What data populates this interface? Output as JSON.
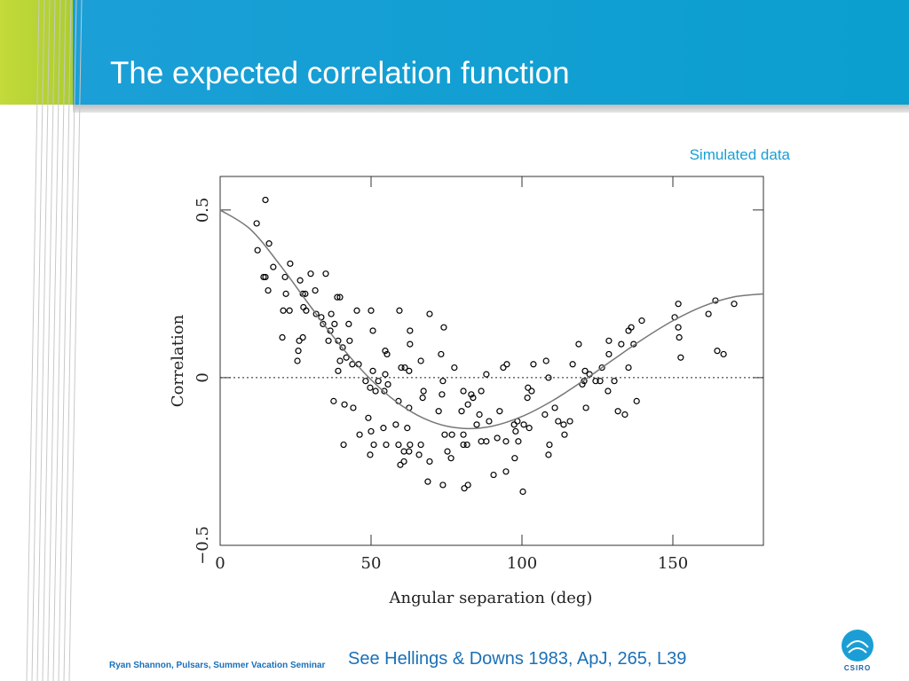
{
  "slide": {
    "title": "The expected correlation function",
    "footer": "Ryan Shannon, Pulsars, Summer Vacation Seminar",
    "reference": "See Hellings & Downs 1983, ApJ, 265, L39",
    "logo_text": "CSIRO"
  },
  "chart_data": {
    "type": "scatter",
    "annotation": "Simulated data",
    "xlabel": "Angular separation (deg)",
    "ylabel": "Correlation",
    "xlim": [
      0,
      180
    ],
    "ylim": [
      -0.5,
      0.6
    ],
    "xticks": [
      0,
      50,
      100,
      150
    ],
    "yticks": [
      {
        "value": -0.5,
        "label": "−0.5"
      },
      0,
      0.5
    ],
    "zero_line": 0,
    "series": [
      {
        "type": "scatter",
        "color": "#000000",
        "x": [
          15.0,
          12.1,
          16.2,
          12.4,
          15.0,
          14.4,
          17.6,
          21.5,
          15.9,
          23.2,
          21.8,
          26.5,
          30.0,
          28.2,
          27.4,
          31.5,
          35.0,
          31.8,
          33.5,
          36.8,
          38.8,
          39.7,
          20.9,
          23.0,
          27.6,
          28.5,
          34.1,
          36.5,
          35.9,
          39.1,
          42.9,
          20.6,
          27.4,
          26.2,
          25.9,
          25.6,
          40.6,
          41.8,
          39.7,
          37.9,
          45.3,
          50.0,
          42.6,
          50.6,
          45.9,
          43.8,
          39.1,
          48.2,
          50.6,
          52.4,
          54.7,
          55.6,
          55.3,
          54.7,
          49.7,
          54.4,
          51.5,
          37.6,
          41.2,
          44.1,
          59.4,
          61.2,
          60.0,
          62.6,
          62.9,
          62.9,
          66.5,
          69.4,
          74.1,
          77.6,
          73.2,
          73.8,
          67.4,
          67.1,
          59.1,
          62.6,
          73.5,
          72.4,
          80.6,
          83.2,
          86.5,
          82.1,
          83.8,
          80.0,
          85.9,
          88.2,
          93.8,
          95.0,
          103.8,
          108.0,
          116.8,
          108.8,
          102.0,
          103.2,
          101.8,
          92.6,
          85.0,
          89.1,
          97.4,
          98.5,
          97.9,
          100.6,
          102.4,
          107.6,
          112.0,
          113.8,
          115.9,
          114.1,
          49.1,
          54.1,
          58.2,
          62.0,
          46.2,
          50.0,
          40.9,
          50.9,
          49.7,
          55.0,
          59.1,
          62.9,
          66.5,
          76.8,
          74.4,
          80.6,
          80.6,
          81.8,
          86.5,
          88.2,
          91.8,
          94.7,
          98.8,
          97.6,
          109.1,
          108.8,
          60.9,
          62.6,
          59.7,
          60.9,
          65.9,
          69.4,
          75.3,
          76.5,
          68.8,
          73.8,
          80.9,
          82.1,
          90.6,
          94.7,
          100.3,
          110.9,
          121.2,
          120.0,
          120.6,
          122.4,
          124.4,
          125.9,
          126.5,
          128.5,
          130.6,
          120.9,
          118.8,
          128.8,
          128.8,
          132.9,
          135.3,
          137.0,
          135.3,
          136.2,
          139.7,
          131.8,
          134.1,
          138.0,
          150.6,
          151.8,
          151.8,
          152.1,
          152.6,
          161.8,
          164.1,
          164.7,
          166.8,
          170.3
        ],
        "values": [
          0.53,
          0.46,
          0.4,
          0.38,
          0.3,
          0.3,
          0.33,
          0.3,
          0.26,
          0.34,
          0.25,
          0.29,
          0.31,
          0.25,
          0.25,
          0.26,
          0.31,
          0.19,
          0.18,
          0.19,
          0.24,
          0.24,
          0.2,
          0.2,
          0.21,
          0.2,
          0.16,
          0.14,
          0.11,
          0.11,
          0.11,
          0.12,
          0.12,
          0.11,
          0.08,
          0.05,
          0.09,
          0.06,
          0.05,
          0.16,
          0.2,
          0.2,
          0.16,
          0.14,
          0.04,
          0.04,
          0.02,
          -0.01,
          0.02,
          -0.01,
          0.01,
          -0.02,
          0.07,
          0.08,
          -0.03,
          -0.04,
          -0.04,
          -0.07,
          -0.08,
          -0.09,
          0.2,
          0.03,
          0.03,
          0.02,
          0.1,
          0.14,
          0.05,
          0.19,
          0.15,
          0.03,
          0.07,
          -0.01,
          -0.04,
          -0.06,
          -0.07,
          -0.09,
          -0.05,
          -0.1,
          -0.04,
          -0.05,
          -0.04,
          -0.08,
          -0.06,
          -0.1,
          -0.11,
          0.01,
          0.03,
          0.04,
          0.04,
          0.05,
          0.04,
          0,
          -0.03,
          -0.04,
          -0.06,
          -0.1,
          -0.14,
          -0.13,
          -0.14,
          -0.13,
          -0.16,
          -0.14,
          -0.15,
          -0.11,
          -0.13,
          -0.14,
          -0.13,
          -0.17,
          -0.12,
          -0.15,
          -0.14,
          -0.15,
          -0.17,
          -0.16,
          -0.2,
          -0.2,
          -0.23,
          -0.2,
          -0.2,
          -0.2,
          -0.2,
          -0.17,
          -0.17,
          -0.17,
          -0.2,
          -0.2,
          -0.19,
          -0.19,
          -0.18,
          -0.19,
          -0.19,
          -0.24,
          -0.2,
          -0.23,
          -0.22,
          -0.22,
          -0.26,
          -0.25,
          -0.23,
          -0.25,
          -0.22,
          -0.24,
          -0.31,
          -0.32,
          -0.33,
          -0.32,
          -0.29,
          -0.28,
          -0.34,
          -0.09,
          -0.09,
          -0.02,
          -0.01,
          0.01,
          -0.01,
          -0.01,
          0.03,
          -0.04,
          -0.01,
          0.02,
          0.1,
          0.07,
          0.11,
          0.1,
          0.03,
          0.1,
          0.14,
          0.15,
          0.17,
          -0.1,
          -0.11,
          -0.07,
          0.18,
          0.22,
          0.15,
          0.12,
          0.06,
          0.19,
          0.23,
          0.08,
          0.07,
          0.22
        ]
      },
      {
        "type": "line",
        "color": "#777777",
        "x": [
          0,
          10,
          20,
          30,
          40,
          50,
          60,
          70,
          80,
          90,
          100,
          110,
          120,
          130,
          140,
          150,
          160,
          170,
          180
        ],
        "values": [
          0.5,
          0.4425,
          0.334,
          0.2116,
          0.0941,
          -0.0062,
          -0.0824,
          -0.1309,
          -0.1511,
          -0.1449,
          -0.1159,
          -0.0694,
          -0.0112,
          0.0522,
          0.1144,
          0.1696,
          0.2129,
          0.2405,
          0.25
        ]
      }
    ]
  }
}
